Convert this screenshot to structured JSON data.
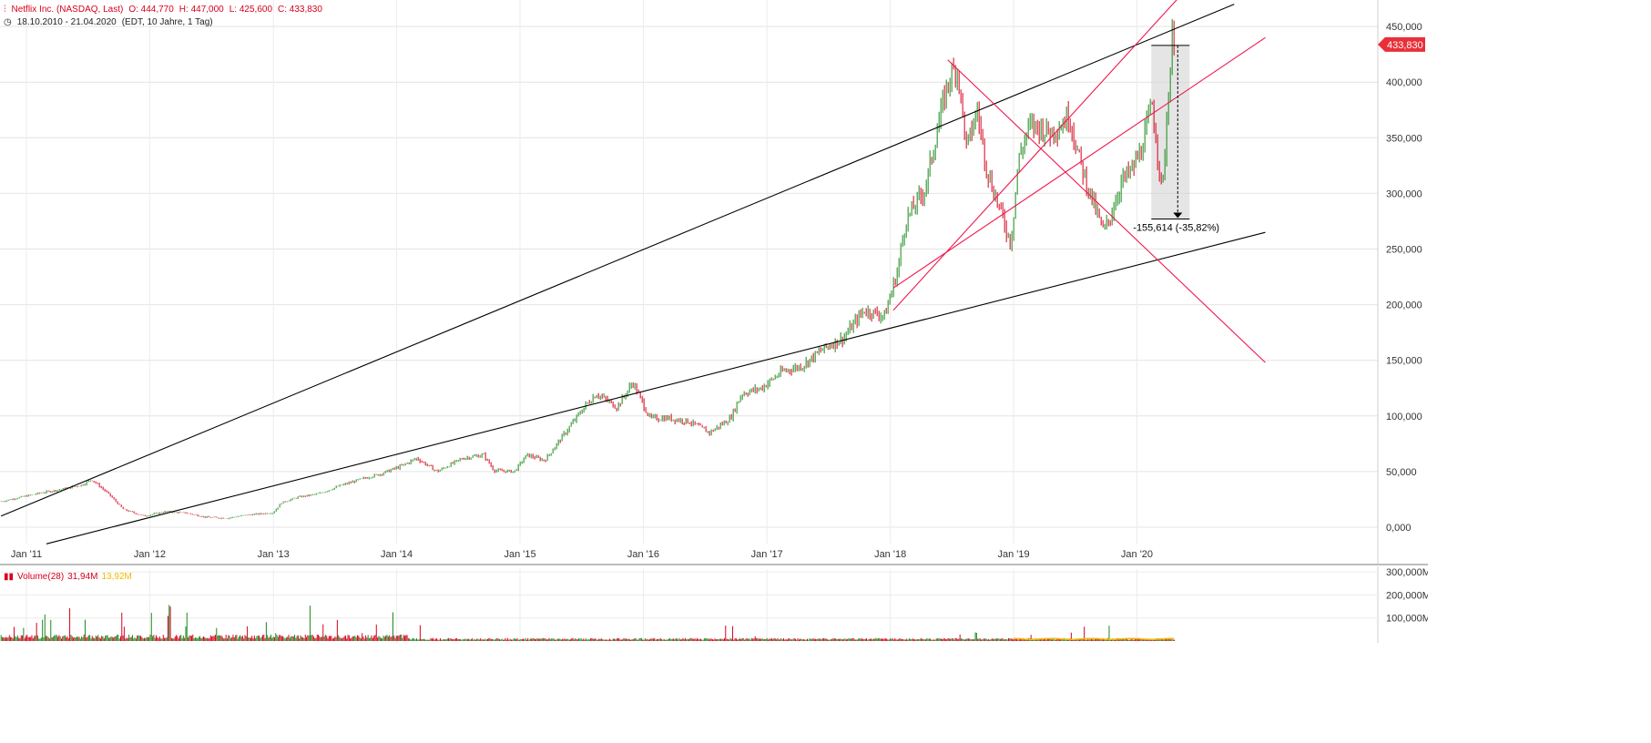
{
  "header": {
    "instrument": "Netflix Inc. (NASDAQ, Last)",
    "open": "O: 444,770",
    "high": "H: 447,000",
    "low": "L: 425,600",
    "close": "C: 433,830",
    "range": "18.10.2010 - 21.04.2020",
    "meta": "(EDT, 10 Jahre, 1 Tag)"
  },
  "colors": {
    "up": "#1a8a1a",
    "down": "#d6001c",
    "trendline_black": "#000000",
    "trendline_red": "#f0174d",
    "price_marker": "#e8303a",
    "volume_avg": "#f5b800"
  },
  "price_marker": "433,830",
  "measure_label": "-155,614 (-35,82%)",
  "volume": {
    "label": "Volume(28)",
    "value": "31,94M",
    "avg": "13,92M",
    "y_ticks": [
      "300,000M",
      "200,000M",
      "100,000M"
    ]
  },
  "chart_data": {
    "type": "line",
    "subtype": "candlestick",
    "title": "Netflix Inc. (NASDAQ, Last)",
    "x_tick_labels": [
      "Jan '11",
      "Jan '12",
      "Jan '13",
      "Jan '14",
      "Jan '15",
      "Jan '16",
      "Jan '17",
      "Jan '18",
      "Jan '19",
      "Jan '20"
    ],
    "y_tick_labels": [
      "450,000",
      "400,000",
      "350,000",
      "300,000",
      "250,000",
      "200,000",
      "150,000",
      "100,000",
      "50,000",
      "0,000"
    ],
    "ylim": [
      0,
      450
    ],
    "grid": true,
    "series": [
      {
        "values_note": "approximate closing prices (USD) read off the chart",
        "x": [
          "2010-10-18",
          "2010-12-15",
          "2011-02-15",
          "2011-04-15",
          "2011-06-15",
          "2011-07-13",
          "2011-09-01",
          "2011-10-15",
          "2011-12-15",
          "2012-02-15",
          "2012-04-15",
          "2012-06-15",
          "2012-08-15",
          "2012-10-15",
          "2012-12-31",
          "2013-01-25",
          "2013-03-15",
          "2013-05-15",
          "2013-07-15",
          "2013-09-15",
          "2013-11-15",
          "2014-01-15",
          "2014-03-01",
          "2014-05-01",
          "2014-07-15",
          "2014-09-15",
          "2014-10-16",
          "2014-12-15",
          "2015-01-21",
          "2015-03-15",
          "2015-05-15",
          "2015-07-15",
          "2015-08-15",
          "2015-10-15",
          "2015-12-01",
          "2016-01-20",
          "2016-03-15",
          "2016-05-15",
          "2016-07-15",
          "2016-09-15",
          "2016-10-18",
          "2016-12-15",
          "2017-02-15",
          "2017-04-15",
          "2017-06-15",
          "2017-08-15",
          "2017-10-15",
          "2017-12-15",
          "2018-01-22",
          "2018-02-15",
          "2018-04-15",
          "2018-05-15",
          "2018-06-20",
          "2018-07-17",
          "2018-08-15",
          "2018-09-15",
          "2018-10-15",
          "2018-12-24",
          "2019-01-15",
          "2019-02-15",
          "2019-03-15",
          "2019-04-15",
          "2019-05-15",
          "2019-06-15",
          "2019-07-15",
          "2019-08-15",
          "2019-09-24",
          "2019-10-15",
          "2019-11-15",
          "2019-12-15",
          "2020-01-15",
          "2020-02-15",
          "2020-03-16",
          "2020-04-01",
          "2020-04-16",
          "2020-04-21"
        ],
        "values": [
          23,
          27,
          31,
          34,
          38,
          43,
          30,
          16,
          10,
          14,
          13,
          9,
          8,
          11,
          13,
          22,
          27,
          30,
          37,
          43,
          48,
          55,
          62,
          50,
          62,
          65,
          51,
          50,
          65,
          60,
          85,
          110,
          120,
          108,
          130,
          98,
          98,
          95,
          85,
          98,
          120,
          125,
          140,
          145,
          160,
          170,
          195,
          190,
          230,
          275,
          305,
          350,
          400,
          415,
          340,
          375,
          320,
          255,
          330,
          360,
          360,
          355,
          360,
          370,
          330,
          300,
          265,
          280,
          310,
          320,
          340,
          380,
          300,
          380,
          445,
          434
        ]
      }
    ],
    "trendlines": [
      {
        "color": "black",
        "from": [
          "2010-10-18",
          10
        ],
        "to": [
          "2020-10-15",
          470
        ]
      },
      {
        "color": "black",
        "from": [
          "2011-03-01",
          -15
        ],
        "to": [
          "2021-01-15",
          265
        ]
      },
      {
        "color": "red",
        "from": [
          "2018-06-20",
          420
        ],
        "to": [
          "2021-01-15",
          148
        ]
      },
      {
        "color": "red",
        "from": [
          "2018-01-10",
          215
        ],
        "to": [
          "2021-01-15",
          440
        ]
      },
      {
        "color": "red",
        "from": [
          "2018-01-10",
          195
        ],
        "to": [
          "2020-07-15",
          500
        ]
      }
    ],
    "measure": {
      "from": [
        "2020-02-18",
        433
      ],
      "to": [
        "2020-03-16",
        277
      ],
      "label": "-155,614 (-35,82%)"
    }
  }
}
